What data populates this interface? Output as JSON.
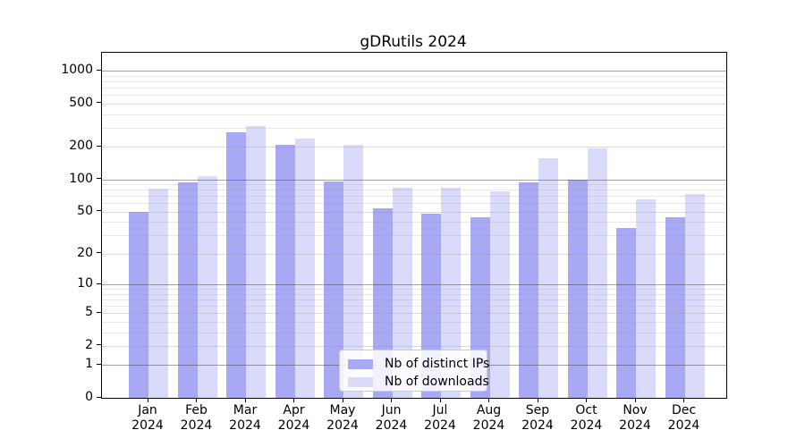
{
  "chart_data": {
    "type": "bar",
    "title": "gDRutils 2024",
    "categories": [
      "Jan",
      "Feb",
      "Mar",
      "Apr",
      "May",
      "Jun",
      "Jul",
      "Aug",
      "Sep",
      "Oct",
      "Nov",
      "Dec"
    ],
    "year": "2024",
    "series": [
      {
        "name": "Nb of distinct IPs",
        "color": "#a8a8f5",
        "values": [
          50,
          93,
          270,
          210,
          96,
          54,
          48,
          44,
          94,
          100,
          35,
          44
        ]
      },
      {
        "name": "Nb of downloads",
        "color": "#dadafa",
        "values": [
          82,
          107,
          310,
          240,
          210,
          84,
          84,
          78,
          158,
          194,
          65,
          73
        ]
      }
    ],
    "y_axis": {
      "scale": "log1p",
      "ticks": [
        0,
        1,
        2,
        5,
        10,
        20,
        50,
        100,
        200,
        500,
        1000
      ],
      "major_gridlines": [
        1,
        10,
        100,
        1000
      ],
      "minor_gridlines": [
        3,
        4,
        6,
        7,
        8,
        9,
        30,
        40,
        60,
        70,
        80,
        90,
        300,
        400,
        600,
        700,
        800,
        900
      ],
      "range_max": 1400
    },
    "legend_position": "lower center",
    "grid": "on"
  }
}
